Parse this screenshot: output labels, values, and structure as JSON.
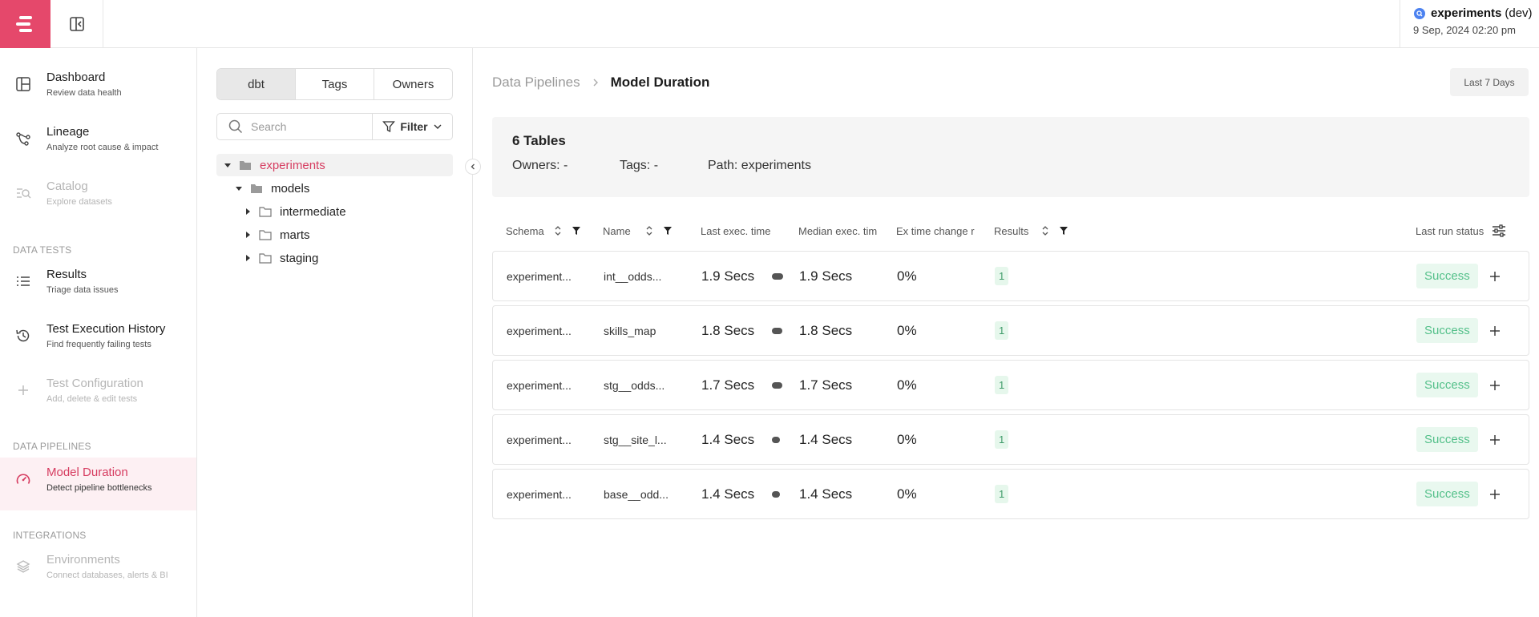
{
  "topbar": {
    "project_name": "experiments",
    "project_env": "(dev)",
    "datetime": "9 Sep, 2024 02:20 pm"
  },
  "sidebar": {
    "sections": [
      "DATA TESTS",
      "DATA PIPELINES",
      "INTEGRATIONS"
    ],
    "items": [
      {
        "title": "Dashboard",
        "subtitle": "Review data health"
      },
      {
        "title": "Lineage",
        "subtitle": "Analyze root cause & impact"
      },
      {
        "title": "Catalog",
        "subtitle": "Explore datasets"
      },
      {
        "title": "Results",
        "subtitle": "Triage data issues"
      },
      {
        "title": "Test Execution History",
        "subtitle": "Find frequently failing tests"
      },
      {
        "title": "Test Configuration",
        "subtitle": "Add, delete & edit tests"
      },
      {
        "title": "Model Duration",
        "subtitle": "Detect pipeline bottlenecks"
      },
      {
        "title": "Environments",
        "subtitle": "Connect databases, alerts & BI"
      }
    ]
  },
  "tree": {
    "tabs": [
      "dbt",
      "Tags",
      "Owners"
    ],
    "search_placeholder": "Search",
    "filter_label": "Filter",
    "nodes": [
      "experiments",
      "models",
      "intermediate",
      "marts",
      "staging"
    ]
  },
  "main": {
    "breadcrumb": [
      "Data Pipelines",
      "Model Duration"
    ],
    "range_label": "Last 7 Days",
    "summary": {
      "count": "6 Tables",
      "owners": "Owners: -",
      "tags": "Tags: -",
      "path": "Path: experiments"
    },
    "columns": [
      "Schema",
      "Name",
      "Last exec. time",
      "Median exec. tim",
      "Ex time change r",
      "Results",
      "Last run status"
    ],
    "rows": [
      {
        "schema": "experiment...",
        "name": "int__odds...",
        "last": "1.9 Secs",
        "median": "1.9 Secs",
        "change": "0%",
        "results": "1",
        "status": "Success",
        "bar_fraction": 1.0
      },
      {
        "schema": "experiment...",
        "name": "skills_map",
        "last": "1.8 Secs",
        "median": "1.8 Secs",
        "change": "0%",
        "results": "1",
        "status": "Success",
        "bar_fraction": 0.95
      },
      {
        "schema": "experiment...",
        "name": "stg__odds...",
        "last": "1.7 Secs",
        "median": "1.7 Secs",
        "change": "0%",
        "results": "1",
        "status": "Success",
        "bar_fraction": 0.9
      },
      {
        "schema": "experiment...",
        "name": "stg__site_l...",
        "last": "1.4 Secs",
        "median": "1.4 Secs",
        "change": "0%",
        "results": "1",
        "status": "Success",
        "bar_fraction": 0.74
      },
      {
        "schema": "experiment...",
        "name": "base__odd...",
        "last": "1.4 Secs",
        "median": "1.4 Secs",
        "change": "0%",
        "results": "1",
        "status": "Success",
        "bar_fraction": 0.74
      }
    ]
  },
  "colors": {
    "brand": "#e5486b",
    "active_text": "#d63c60",
    "success_text": "#54c08a",
    "success_bg": "#e9f8ef"
  }
}
